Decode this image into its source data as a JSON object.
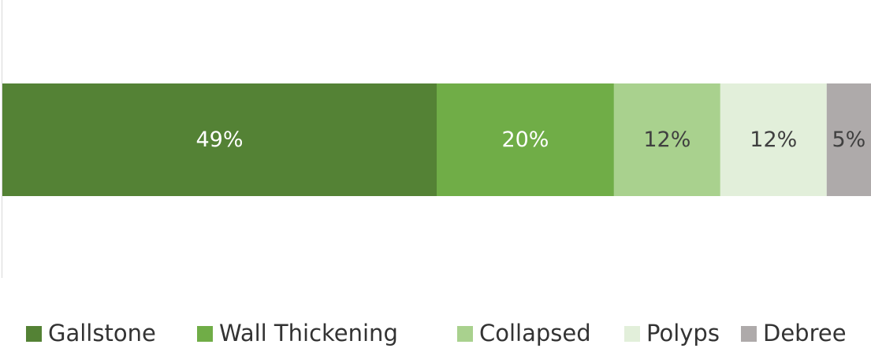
{
  "chart_data": {
    "type": "bar",
    "orientation": "horizontal",
    "stacking": "percent",
    "categories": [
      ""
    ],
    "series": [
      {
        "name": "Gallstone",
        "values": [
          49
        ],
        "label": "49%",
        "color": "#548235",
        "label_color": "#ffffff"
      },
      {
        "name": "Wall Thickening",
        "values": [
          20
        ],
        "label": "20%",
        "color": "#70ad47",
        "label_color": "#ffffff"
      },
      {
        "name": "Collapsed",
        "values": [
          12
        ],
        "label": "12%",
        "color": "#a9d18e",
        "label_color": "#404040"
      },
      {
        "name": "Polyps",
        "values": [
          12
        ],
        "label": "12%",
        "color": "#e2efda",
        "label_color": "#404040"
      },
      {
        "name": "Debree",
        "values": [
          5
        ],
        "label": "5%",
        "color": "#aeaaaa",
        "label_color": "#404040"
      }
    ],
    "xlim": [
      0,
      100
    ],
    "legend": "bottom",
    "grid": false
  }
}
